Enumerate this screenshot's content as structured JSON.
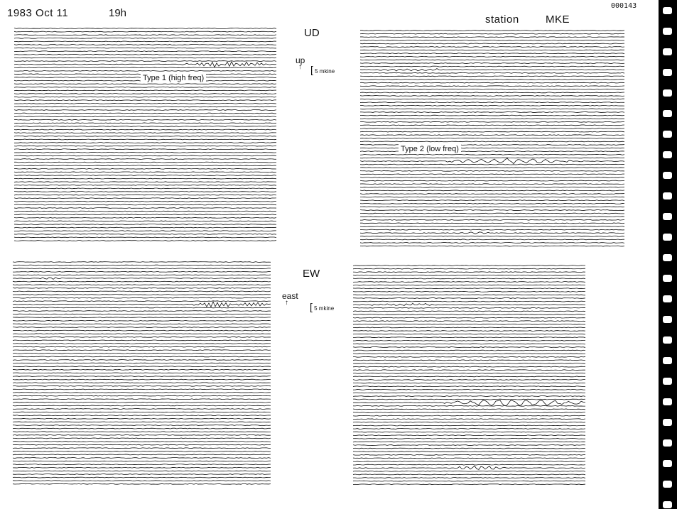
{
  "header": {
    "date": "1983 Oct 11",
    "hour": "19h",
    "station_word": "station",
    "station_code": "MKE",
    "frame_number": "000143"
  },
  "components": [
    {
      "label": "UD",
      "direction": "up",
      "scale": "5 mkine"
    },
    {
      "label": "EW",
      "direction": "east",
      "scale": "5 mkine"
    }
  ],
  "annotations": {
    "type1": "Type 1 (high freq)",
    "type2": "Type 2 (low freq)"
  },
  "colors": {
    "ink": "#111111",
    "paper": "#ffffff",
    "film": "#000000"
  }
}
